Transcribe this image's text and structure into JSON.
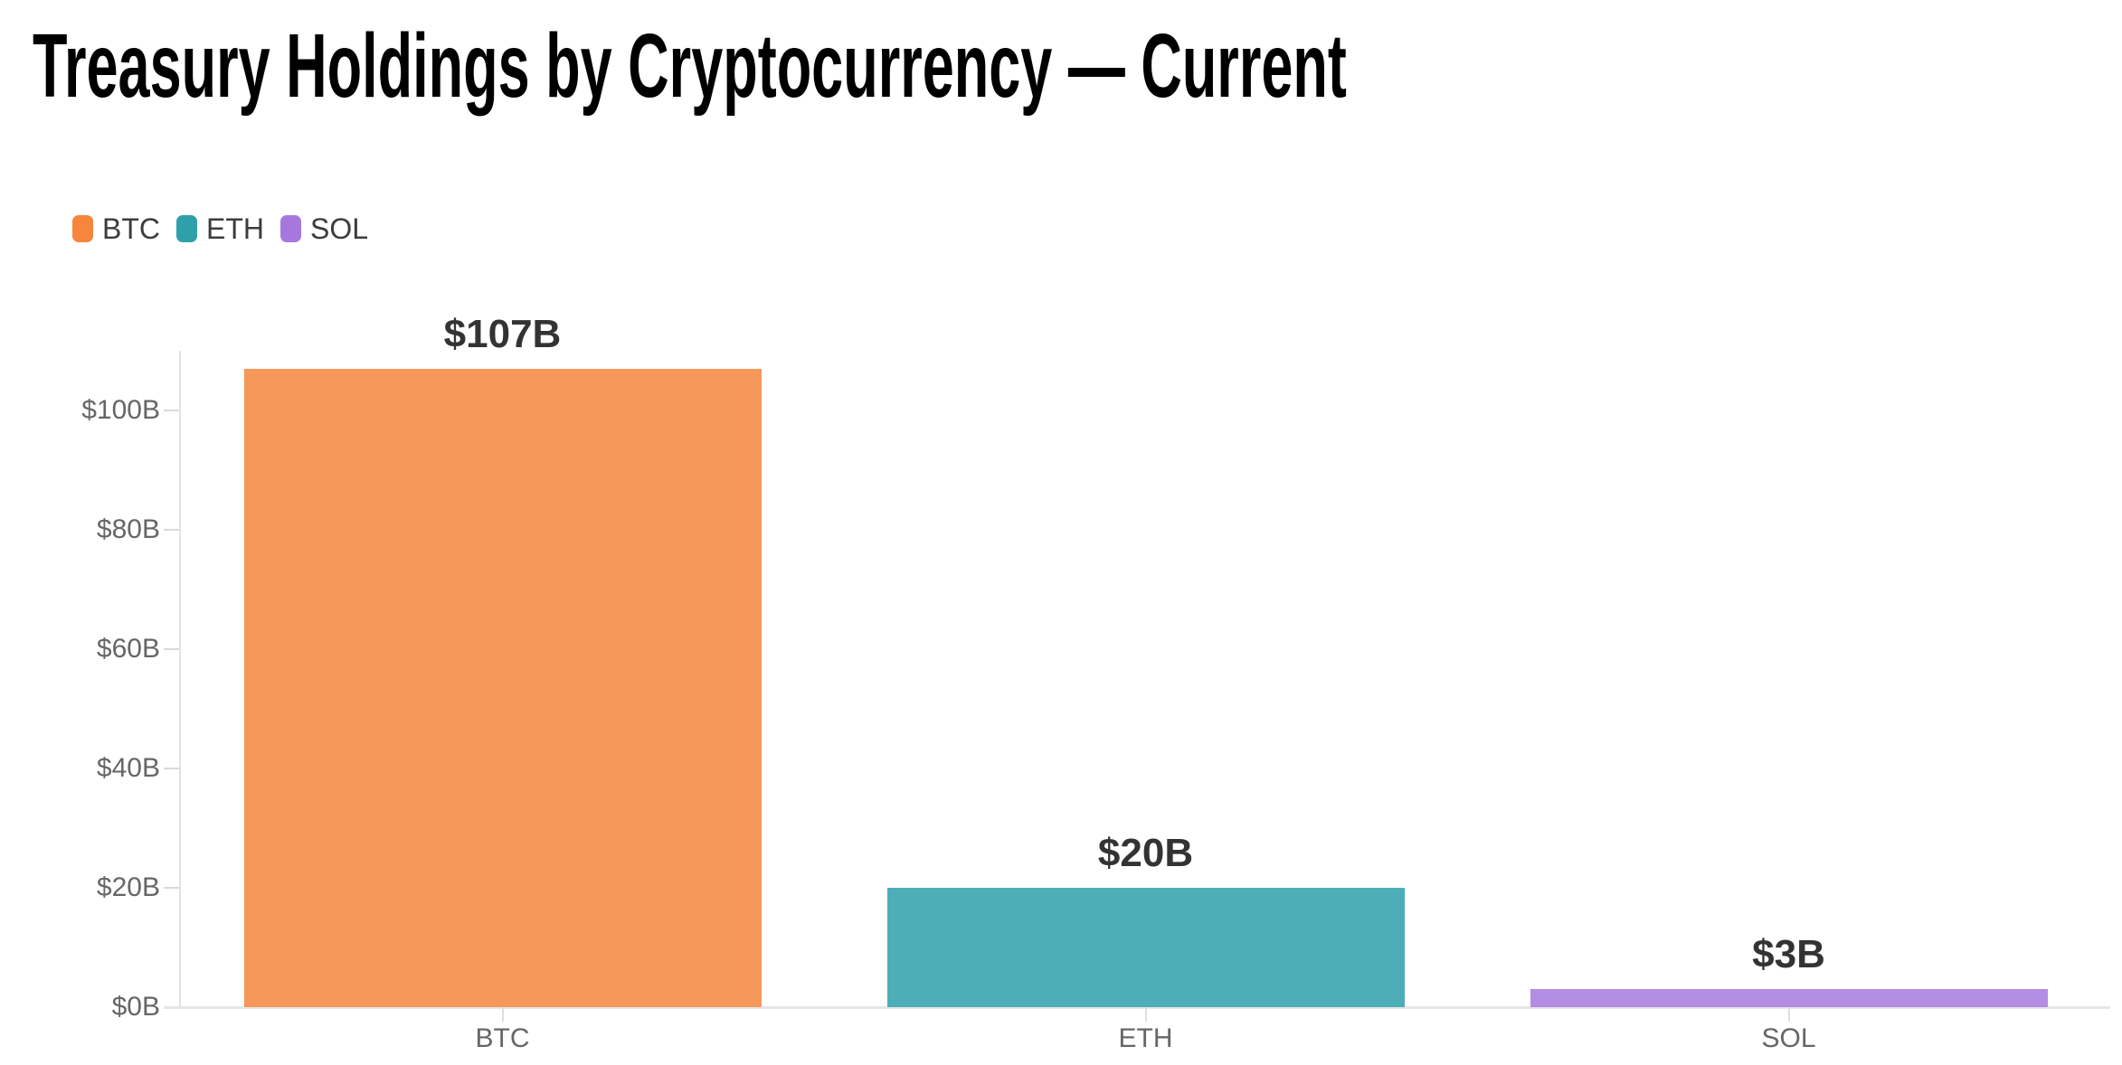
{
  "title": "Treasury Holdings by Cryptocurrency — Current",
  "legend": {
    "position": "top-left",
    "items": [
      {
        "label": "BTC",
        "color": "#F5863C"
      },
      {
        "label": "ETH",
        "color": "#2FA0AA"
      },
      {
        "label": "SOL",
        "color": "#A678DE"
      }
    ]
  },
  "chart_data": {
    "type": "bar",
    "title": "Treasury Holdings by Cryptocurrency — Current",
    "categories": [
      "BTC",
      "ETH",
      "SOL"
    ],
    "values": [
      107,
      20,
      3
    ],
    "value_labels": [
      "$107B",
      "$20B",
      "$3B"
    ],
    "series_colors": [
      "#F5863C",
      "#2FA0AA",
      "#A678DE"
    ],
    "xlabel": "",
    "ylabel": "",
    "y_ticks": {
      "values": [
        0,
        20,
        40,
        60,
        80,
        100
      ],
      "labels": [
        "$0B",
        "$20B",
        "$40B",
        "$60B",
        "$80B",
        "$100B"
      ]
    },
    "ylim": [
      0,
      110
    ],
    "grid": false,
    "legend_position": "top-left"
  }
}
